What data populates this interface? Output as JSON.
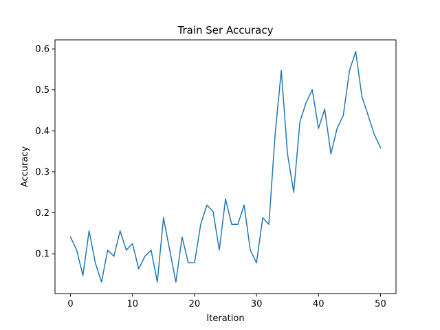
{
  "chart_data": {
    "type": "line",
    "title": "Train Ser Accuracy",
    "xlabel": "Iteration",
    "ylabel": "Accuracy",
    "xlim": [
      -2.5,
      52.5
    ],
    "ylim": [
      0.003,
      0.622
    ],
    "xticks": [
      0,
      10,
      20,
      30,
      40,
      50
    ],
    "yticks": [
      0.1,
      0.2,
      0.3,
      0.4,
      0.5,
      0.6
    ],
    "xtick_labels": [
      "0",
      "10",
      "20",
      "30",
      "40",
      "50"
    ],
    "ytick_labels": [
      "0.1",
      "0.2",
      "0.3",
      "0.4",
      "0.5",
      "0.6"
    ],
    "grid": false,
    "legend": false,
    "series": [
      {
        "color": "#1f77b4",
        "x": [
          0,
          1,
          2,
          3,
          4,
          5,
          6,
          7,
          8,
          9,
          10,
          11,
          12,
          13,
          14,
          15,
          16,
          17,
          18,
          19,
          20,
          21,
          22,
          23,
          24,
          25,
          26,
          27,
          28,
          29,
          30,
          31,
          32,
          33,
          34,
          35,
          36,
          37,
          38,
          39,
          40,
          41,
          42,
          43,
          44,
          45,
          46,
          47,
          48,
          49,
          50
        ],
        "values": [
          0.141,
          0.109,
          0.047,
          0.156,
          0.078,
          0.031,
          0.109,
          0.094,
          0.156,
          0.109,
          0.125,
          0.063,
          0.094,
          0.109,
          0.031,
          0.188,
          0.109,
          0.031,
          0.141,
          0.078,
          0.078,
          0.172,
          0.219,
          0.203,
          0.109,
          0.234,
          0.172,
          0.172,
          0.219,
          0.109,
          0.078,
          0.188,
          0.172,
          0.391,
          0.547,
          0.344,
          0.25,
          0.422,
          0.469,
          0.5,
          0.406,
          0.453,
          0.344,
          0.406,
          0.438,
          0.547,
          0.594,
          0.484,
          0.438,
          0.391,
          0.359
        ]
      }
    ]
  }
}
